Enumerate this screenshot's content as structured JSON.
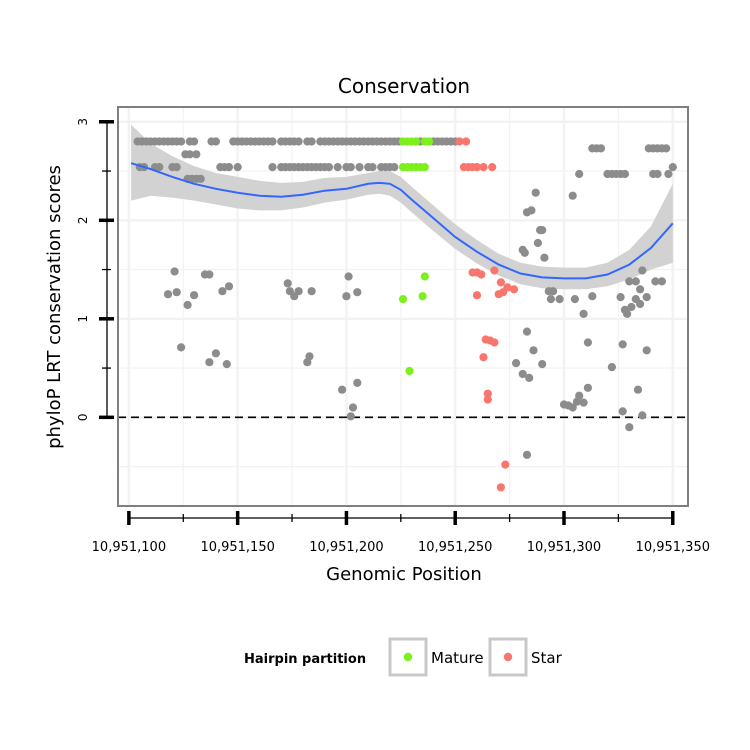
{
  "chart_data": {
    "type": "scatter",
    "title": "Conservation",
    "xlabel": "Genomic Position",
    "ylabel": "phyloP LRT conservation scores",
    "xlim": [
      10951095,
      10951357
    ],
    "ylim": [
      -0.9,
      3.15
    ],
    "x_ticks": [
      10951100,
      10951150,
      10951200,
      10951250,
      10951300,
      10951350
    ],
    "x_tick_labels": [
      "10,951,100",
      "10,951,150",
      "10,951,200",
      "10,951,250",
      "10,951,300",
      "10,951,350"
    ],
    "y_ticks": [
      0,
      1,
      2,
      3
    ],
    "y_tick_labels": [
      "0",
      "1",
      "2",
      "3"
    ],
    "reference_line": {
      "y": 0,
      "style": "dashed"
    },
    "legend": {
      "title": "Hairpin partition",
      "position": "bottom",
      "entries": [
        {
          "label": "Mature",
          "color": "#7cf01a"
        },
        {
          "label": "Star",
          "color": "#f8766d"
        }
      ]
    },
    "colors": {
      "Other": "#8c8c8c",
      "Mature": "#7cf01a",
      "Star": "#f8766d",
      "smooth": "#3366ff",
      "band": "#d2d2d2"
    },
    "series": [
      {
        "name": "Other",
        "points": [
          [
            10951104,
            2.8
          ],
          [
            10951106,
            2.8
          ],
          [
            10951108,
            2.8
          ],
          [
            10951110,
            2.8
          ],
          [
            10951112,
            2.8
          ],
          [
            10951114,
            2.8
          ],
          [
            10951116,
            2.8
          ],
          [
            10951118,
            2.8
          ],
          [
            10951120,
            2.8
          ],
          [
            10951122,
            2.8
          ],
          [
            10951124,
            2.8
          ],
          [
            10951128,
            2.8
          ],
          [
            10951130,
            2.8
          ],
          [
            10951138,
            2.8
          ],
          [
            10951140,
            2.8
          ],
          [
            10951148,
            2.8
          ],
          [
            10951150,
            2.8
          ],
          [
            10951152,
            2.8
          ],
          [
            10951154,
            2.8
          ],
          [
            10951156,
            2.8
          ],
          [
            10951158,
            2.8
          ],
          [
            10951160,
            2.8
          ],
          [
            10951162,
            2.8
          ],
          [
            10951164,
            2.8
          ],
          [
            10951166,
            2.8
          ],
          [
            10951170,
            2.8
          ],
          [
            10951172,
            2.8
          ],
          [
            10951174,
            2.8
          ],
          [
            10951176,
            2.8
          ],
          [
            10951178,
            2.8
          ],
          [
            10951182,
            2.8
          ],
          [
            10951184,
            2.8
          ],
          [
            10951188,
            2.8
          ],
          [
            10951190,
            2.8
          ],
          [
            10951192,
            2.8
          ],
          [
            10951194,
            2.8
          ],
          [
            10951196,
            2.8
          ],
          [
            10951198,
            2.8
          ],
          [
            10951200,
            2.8
          ],
          [
            10951202,
            2.8
          ],
          [
            10951204,
            2.8
          ],
          [
            10951206,
            2.8
          ],
          [
            10951208,
            2.8
          ],
          [
            10951210,
            2.8
          ],
          [
            10951212,
            2.8
          ],
          [
            10951214,
            2.8
          ],
          [
            10951216,
            2.8
          ],
          [
            10951218,
            2.8
          ],
          [
            10951220,
            2.8
          ],
          [
            10951222,
            2.8
          ],
          [
            10951224,
            2.8
          ],
          [
            10951232,
            2.8
          ],
          [
            10951234,
            2.8
          ],
          [
            10951240,
            2.8
          ],
          [
            10951242,
            2.8
          ],
          [
            10951244,
            2.8
          ],
          [
            10951246,
            2.8
          ],
          [
            10951248,
            2.8
          ],
          [
            10951250,
            2.8
          ],
          [
            10951105,
            2.54
          ],
          [
            10951107,
            2.54
          ],
          [
            10951112,
            2.54
          ],
          [
            10951114,
            2.54
          ],
          [
            10951120,
            2.54
          ],
          [
            10951122,
            2.54
          ],
          [
            10951142,
            2.54
          ],
          [
            10951144,
            2.54
          ],
          [
            10951146,
            2.54
          ],
          [
            10951150,
            2.54
          ],
          [
            10951166,
            2.54
          ],
          [
            10951170,
            2.54
          ],
          [
            10951172,
            2.54
          ],
          [
            10951174,
            2.54
          ],
          [
            10951176,
            2.54
          ],
          [
            10951178,
            2.54
          ],
          [
            10951180,
            2.54
          ],
          [
            10951182,
            2.54
          ],
          [
            10951184,
            2.54
          ],
          [
            10951186,
            2.54
          ],
          [
            10951188,
            2.54
          ],
          [
            10951190,
            2.54
          ],
          [
            10951192,
            2.54
          ],
          [
            10951196,
            2.54
          ],
          [
            10951200,
            2.54
          ],
          [
            10951202,
            2.54
          ],
          [
            10951206,
            2.54
          ],
          [
            10951210,
            2.54
          ],
          [
            10951212,
            2.54
          ],
          [
            10951216,
            2.54
          ],
          [
            10951218,
            2.54
          ],
          [
            10951220,
            2.54
          ],
          [
            10951222,
            2.54
          ],
          [
            10951126,
            2.67
          ],
          [
            10951128,
            2.67
          ],
          [
            10951131,
            2.67
          ],
          [
            10951127,
            2.42
          ],
          [
            10951129,
            2.42
          ],
          [
            10951131,
            2.42
          ],
          [
            10951133,
            2.42
          ],
          [
            10951287,
            2.28
          ],
          [
            10951304,
            2.25
          ],
          [
            10951307,
            2.47
          ],
          [
            10951285,
            2.1
          ],
          [
            10951289,
            1.9
          ],
          [
            10951288,
            1.77
          ],
          [
            10951281,
            1.7
          ],
          [
            10951290,
            1.9
          ],
          [
            10951291,
            1.62
          ],
          [
            10951293,
            1.28
          ],
          [
            10951295,
            1.28
          ],
          [
            10951294,
            1.2
          ],
          [
            10951298,
            1.2
          ],
          [
            10951305,
            1.2
          ],
          [
            10951309,
            1.05
          ],
          [
            10951313,
            1.23
          ],
          [
            10951311,
            0.76
          ],
          [
            10951313,
            2.73
          ],
          [
            10951315,
            2.73
          ],
          [
            10951317,
            2.73
          ],
          [
            10951320,
            2.47
          ],
          [
            10951322,
            2.47
          ],
          [
            10951324,
            2.47
          ],
          [
            10951326,
            2.47
          ],
          [
            10951328,
            2.47
          ],
          [
            10951339,
            2.73
          ],
          [
            10951341,
            2.73
          ],
          [
            10951343,
            2.73
          ],
          [
            10951345,
            2.73
          ],
          [
            10951347,
            2.73
          ],
          [
            10951341,
            2.47
          ],
          [
            10951343,
            2.47
          ],
          [
            10951348,
            2.47
          ],
          [
            10951350,
            2.54
          ],
          [
            10951326,
            1.22
          ],
          [
            10951328,
            1.09
          ],
          [
            10951329,
            1.05
          ],
          [
            10951331,
            1.12
          ],
          [
            10951333,
            1.2
          ],
          [
            10951335,
            1.3
          ],
          [
            10951335,
            1.15
          ],
          [
            10951338,
            1.22
          ],
          [
            10951330,
            1.38
          ],
          [
            10951333,
            1.38
          ],
          [
            10951336,
            1.49
          ],
          [
            10951342,
            1.38
          ],
          [
            10951345,
            1.38
          ],
          [
            10951327,
            0.74
          ],
          [
            10951322,
            0.51
          ],
          [
            10951338,
            0.68
          ],
          [
            10951334,
            0.28
          ],
          [
            10951336,
            0.02
          ],
          [
            10951327,
            0.06
          ],
          [
            10951330,
            -0.1
          ],
          [
            10951118,
            1.25
          ],
          [
            10951121,
            1.48
          ],
          [
            10951122,
            1.27
          ],
          [
            10951124,
            0.71
          ],
          [
            10951127,
            1.14
          ],
          [
            10951130,
            1.24
          ],
          [
            10951135,
            1.45
          ],
          [
            10951137,
            1.45
          ],
          [
            10951137,
            0.56
          ],
          [
            10951140,
            0.65
          ],
          [
            10951143,
            1.28
          ],
          [
            10951145,
            0.54
          ],
          [
            10951146,
            1.33
          ],
          [
            10951173,
            1.36
          ],
          [
            10951174,
            1.28
          ],
          [
            10951176,
            1.23
          ],
          [
            10951178,
            1.28
          ],
          [
            10951182,
            0.56
          ],
          [
            10951183,
            0.62
          ],
          [
            10951184,
            1.28
          ],
          [
            10951198,
            0.28
          ],
          [
            10951200,
            1.23
          ],
          [
            10951201,
            1.43
          ],
          [
            10951205,
            1.27
          ],
          [
            10951202,
            0.01
          ],
          [
            10951203,
            0.1
          ],
          [
            10951205,
            0.35
          ],
          [
            10951278,
            0.55
          ],
          [
            10951281,
            0.44
          ],
          [
            10951283,
            0.87
          ],
          [
            10951284,
            0.4
          ],
          [
            10951286,
            0.68
          ],
          [
            10951290,
            0.54
          ],
          [
            10951282,
            1.67
          ],
          [
            10951283,
            2.08
          ],
          [
            10951283,
            -0.38
          ],
          [
            10951300,
            0.13
          ],
          [
            10951302,
            0.12
          ],
          [
            10951304,
            0.1
          ],
          [
            10951306,
            0.16
          ],
          [
            10951307,
            0.22
          ],
          [
            10951309,
            0.15
          ],
          [
            10951311,
            0.3
          ]
        ]
      },
      {
        "name": "Mature",
        "points": [
          [
            10951226,
            2.8
          ],
          [
            10951228,
            2.8
          ],
          [
            10951230,
            2.8
          ],
          [
            10951232,
            2.8
          ],
          [
            10951236,
            2.8
          ],
          [
            10951238,
            2.8
          ],
          [
            10951226,
            2.54
          ],
          [
            10951228,
            2.54
          ],
          [
            10951230,
            2.54
          ],
          [
            10951232,
            2.54
          ],
          [
            10951234,
            2.54
          ],
          [
            10951236,
            2.54
          ],
          [
            10951226,
            1.2
          ],
          [
            10951235,
            1.23
          ],
          [
            10951236,
            1.43
          ],
          [
            10951229,
            0.47
          ]
        ]
      },
      {
        "name": "Star",
        "points": [
          [
            10951252,
            2.8
          ],
          [
            10951255,
            2.8
          ],
          [
            10951254,
            2.54
          ],
          [
            10951256,
            2.54
          ],
          [
            10951258,
            2.54
          ],
          [
            10951260,
            2.54
          ],
          [
            10951263,
            2.54
          ],
          [
            10951267,
            2.54
          ],
          [
            10951258,
            1.47
          ],
          [
            10951260,
            1.47
          ],
          [
            10951262,
            1.45
          ],
          [
            10951268,
            1.49
          ],
          [
            10951271,
            1.37
          ],
          [
            10951272,
            1.27
          ],
          [
            10951274,
            1.32
          ],
          [
            10951277,
            1.3
          ],
          [
            10951270,
            1.25
          ],
          [
            10951260,
            1.24
          ],
          [
            10951264,
            0.79
          ],
          [
            10951266,
            0.78
          ],
          [
            10951268,
            0.76
          ],
          [
            10951263,
            0.61
          ],
          [
            10951265,
            0.24
          ],
          [
            10951265,
            0.18
          ],
          [
            10951273,
            -0.48
          ],
          [
            10951271,
            -0.71
          ]
        ]
      }
    ],
    "smooth": {
      "x": [
        10951101,
        10951110,
        10951120,
        10951130,
        10951140,
        10951150,
        10951160,
        10951170,
        10951180,
        10951190,
        10951200,
        10951210,
        10951215,
        10951220,
        10951225,
        10951230,
        10951240,
        10951250,
        10951260,
        10951270,
        10951280,
        10951290,
        10951300,
        10951310,
        10951320,
        10951330,
        10951340,
        10951350
      ],
      "y": [
        2.58,
        2.52,
        2.44,
        2.37,
        2.32,
        2.28,
        2.25,
        2.24,
        2.26,
        2.3,
        2.32,
        2.37,
        2.38,
        2.37,
        2.31,
        2.21,
        2.02,
        1.83,
        1.68,
        1.55,
        1.46,
        1.42,
        1.41,
        1.41,
        1.45,
        1.55,
        1.72,
        1.97
      ],
      "lower": [
        2.2,
        2.25,
        2.23,
        2.2,
        2.16,
        2.12,
        2.1,
        2.1,
        2.13,
        2.18,
        2.21,
        2.26,
        2.27,
        2.25,
        2.18,
        2.08,
        1.89,
        1.71,
        1.56,
        1.44,
        1.35,
        1.31,
        1.3,
        1.3,
        1.33,
        1.4,
        1.5,
        1.57
      ],
      "upper": [
        2.97,
        2.78,
        2.65,
        2.55,
        2.48,
        2.44,
        2.4,
        2.38,
        2.39,
        2.43,
        2.44,
        2.48,
        2.5,
        2.5,
        2.44,
        2.34,
        2.15,
        1.96,
        1.8,
        1.66,
        1.57,
        1.53,
        1.52,
        1.52,
        1.57,
        1.7,
        1.94,
        2.37
      ]
    }
  }
}
